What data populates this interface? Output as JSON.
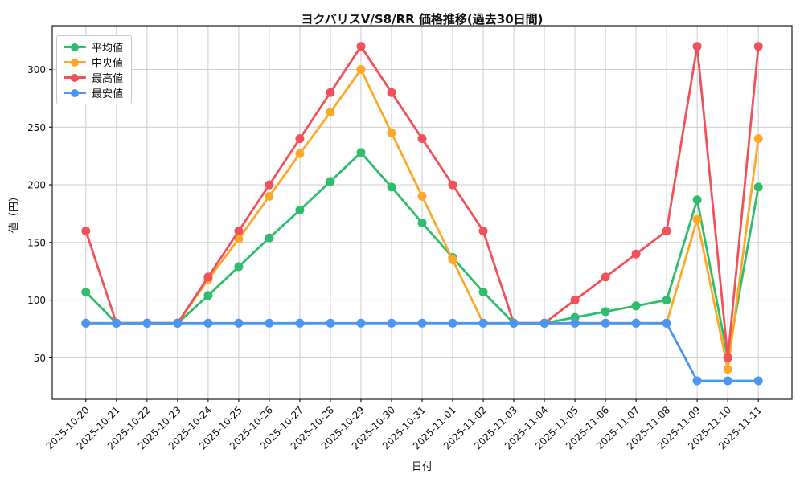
{
  "figure": {
    "title": "ヨクバリスV/S8/RR 価格推移(過去30日間)",
    "xlabel": "日付",
    "ylabel": "値（円）"
  },
  "chart_data": {
    "type": "line",
    "title": "ヨクバリスV/S8/RR 価格推移(過去30日間)",
    "xlabel": "日付",
    "ylabel": "値（円）",
    "x": [
      "2025-10-20",
      "2025-10-21",
      "2025-10-22",
      "2025-10-23",
      "2025-10-24",
      "2025-10-25",
      "2025-10-26",
      "2025-10-27",
      "2025-10-28",
      "2025-10-29",
      "2025-10-30",
      "2025-10-31",
      "2025-11-01",
      "2025-11-02",
      "2025-11-03",
      "2025-11-04",
      "2025-11-05",
      "2025-11-06",
      "2025-11-07",
      "2025-11-08",
      "2025-11-09",
      "2025-11-10",
      "2025-11-11"
    ],
    "yticks": [
      50,
      100,
      150,
      200,
      250,
      300
    ],
    "ylim": [
      14,
      338
    ],
    "grid": true,
    "grid_color": "#cccccc",
    "legend_position": "upper-left",
    "series": [
      {
        "key": "avg",
        "name": "平均値",
        "color": "#2dbd6c",
        "values": [
          107,
          80,
          80,
          80,
          104,
          129,
          154,
          178,
          203,
          228,
          198,
          167,
          137,
          107,
          80,
          80,
          85,
          90,
          95,
          100,
          187,
          50,
          198
        ]
      },
      {
        "key": "median",
        "name": "中央値",
        "color": "#ffa726",
        "values": [
          80,
          80,
          80,
          80,
          118,
          153,
          190,
          227,
          263,
          300,
          245,
          190,
          135,
          80,
          80,
          80,
          80,
          80,
          80,
          80,
          170,
          40,
          240
        ]
      },
      {
        "key": "max",
        "name": "最高値",
        "color": "#f3515a",
        "values": [
          160,
          80,
          80,
          80,
          120,
          160,
          200,
          240,
          280,
          320,
          280,
          240,
          200,
          160,
          80,
          80,
          100,
          120,
          140,
          160,
          320,
          50,
          320
        ]
      },
      {
        "key": "min",
        "name": "最安値",
        "color": "#4b96f3",
        "values": [
          80,
          80,
          80,
          80,
          80,
          80,
          80,
          80,
          80,
          80,
          80,
          80,
          80,
          80,
          80,
          80,
          80,
          80,
          80,
          80,
          30,
          30,
          30
        ]
      }
    ]
  }
}
